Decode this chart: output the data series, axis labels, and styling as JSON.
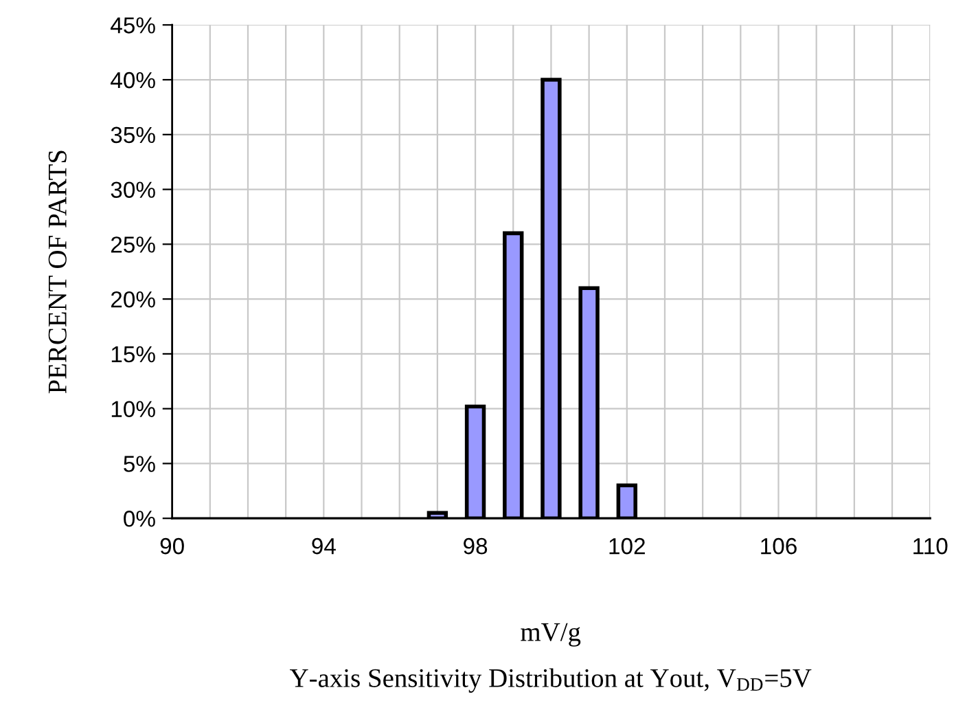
{
  "chart_data": {
    "type": "bar",
    "title": "Y-axis Sensitivity Distribution at Yout, V$_{DD}$=5V",
    "xlabel": "mV/g",
    "ylabel": "PERCENT OF PARTS",
    "x": [
      97,
      98,
      99,
      100,
      101,
      102
    ],
    "series": [
      {
        "color": "#9999ff",
        "values": [
          0.5,
          10.2,
          26,
          40,
          21,
          3
        ]
      }
    ],
    "xlim": [
      90,
      110
    ],
    "xticks": [
      90,
      {
        "value": 91,
        "label": null
      },
      {
        "value": 92,
        "label": null
      },
      {
        "value": 93,
        "label": null
      },
      94,
      {
        "value": 95,
        "label": null
      },
      {
        "value": 96,
        "label": null
      },
      {
        "value": 97,
        "label": null
      },
      98,
      {
        "value": 99,
        "label": null
      },
      {
        "value": 100,
        "label": null
      },
      {
        "value": 101,
        "label": null
      },
      102,
      {
        "value": 103,
        "label": null
      },
      {
        "value": 104,
        "label": null
      },
      {
        "value": 105,
        "label": null
      },
      106,
      {
        "value": 107,
        "label": null
      },
      {
        "value": 108,
        "label": null
      },
      {
        "value": 109,
        "label": null
      },
      110
    ],
    "ylim": [
      0,
      45
    ],
    "yticks": [
      {
        "value": 0,
        "label": "0%"
      },
      {
        "value": 5,
        "label": "5%"
      },
      {
        "value": 10,
        "label": "10%"
      },
      {
        "value": 15,
        "label": "15%"
      },
      {
        "value": 20,
        "label": "20%"
      },
      {
        "value": 25,
        "label": "25%"
      },
      {
        "value": 30,
        "label": "30%"
      },
      {
        "value": 35,
        "label": "35%"
      },
      {
        "value": 40,
        "label": "40%"
      },
      {
        "value": 45,
        "label": "45%"
      }
    ],
    "grid": true
  }
}
